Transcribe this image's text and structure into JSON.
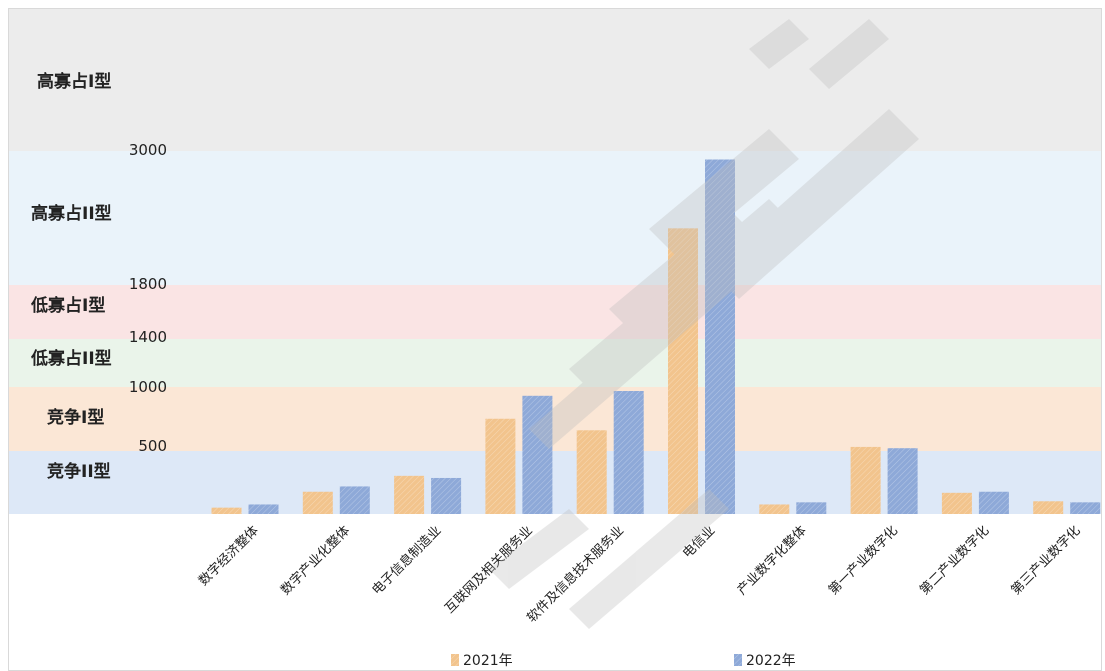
{
  "chart_data": {
    "type": "bar",
    "categories": [
      "数字经济整体",
      "数字产业化整体",
      "电子信息制造业",
      "互联网及相关服务业",
      "软件及信息技术服务业",
      "电信业",
      "产业数字化整体",
      "第一产业数字化",
      "第二产业数字化",
      "第三产业数字化"
    ],
    "series": [
      {
        "name": "2021年",
        "values": [
          60,
          210,
          360,
          830,
          740,
          2380,
          90,
          610,
          200,
          120
        ],
        "color": "#f2c48d"
      },
      {
        "name": "2022年",
        "values": [
          90,
          260,
          340,
          1010,
          1050,
          2970,
          110,
          600,
          210,
          110
        ],
        "color": "#8ea9d8"
      }
    ],
    "yticks": [
      "3000",
      "1800",
      "1400",
      "1000",
      "500"
    ],
    "bands": [
      {
        "label": "高寡占I型",
        "color": "#ececec"
      },
      {
        "label": "高寡占II型",
        "color": "#eaf3fa"
      },
      {
        "label": "低寡占I型",
        "color": "#fae4e4"
      },
      {
        "label": "低寡占II型",
        "color": "#eaf4ea"
      },
      {
        "label": "竞争I型",
        "color": "#fbe7d6"
      },
      {
        "label": "竞争II型",
        "color": "#dde8f7"
      }
    ],
    "legend_position": "bottom",
    "title": "",
    "xlabel": "",
    "ylabel": ""
  }
}
